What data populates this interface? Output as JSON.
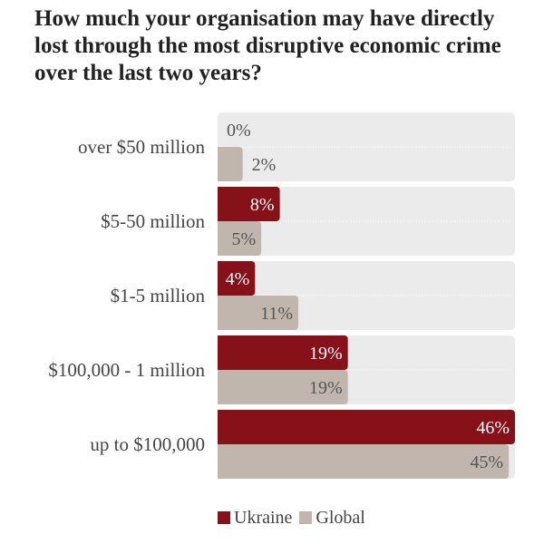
{
  "chart_data": {
    "type": "bar",
    "title": "How much your organisation may have directly lost through the most disruptive economic crime over the last two years?",
    "categories": [
      "over $50 million",
      "$5-50 million",
      "$1-5 million",
      "$100,000 - 1 million",
      "up to $100,000"
    ],
    "series": [
      {
        "name": "Ukraine",
        "color": "#861119",
        "values": [
          0,
          8,
          4,
          19,
          46
        ],
        "labels": [
          "0%",
          "8%",
          "4%",
          "19%",
          "46%"
        ]
      },
      {
        "name": "Global",
        "color": "#c0b6ae",
        "values": [
          2,
          5,
          11,
          19,
          45
        ],
        "labels": [
          "2%",
          "5%",
          "11%",
          "19%",
          "45%"
        ]
      }
    ],
    "xlim": [
      0,
      46
    ],
    "legend": "bottom"
  }
}
